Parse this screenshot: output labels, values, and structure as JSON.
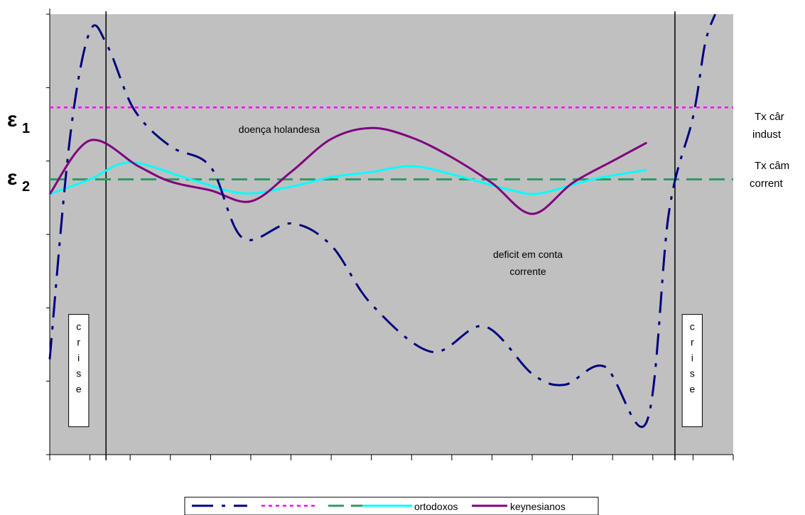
{
  "chart_data": {
    "type": "line",
    "title": "",
    "xlabel": "",
    "ylabel": "",
    "xlim": [
      0,
      17
    ],
    "ylim": [
      0,
      6
    ],
    "grid": false,
    "legend_position": "bottom",
    "axis_labels_y": [
      {
        "symbol": "ε",
        "sub": "1",
        "y": 4.73
      },
      {
        "symbol": "ε",
        "sub": "2",
        "y": 3.75
      }
    ],
    "annotations": {
      "doenca": "doença holandesa",
      "deficit_line1": "deficit em conta",
      "deficit_line2": "corrente",
      "tx1_line1": "Tx câr",
      "tx1_line2": "indust",
      "tx2_line1": "Tx câm",
      "tx2_line2": "corrent"
    },
    "crise": {
      "letters": [
        "c",
        "r",
        "i",
        "s",
        "e"
      ],
      "x_start": 0.47,
      "x_end": 0.97,
      "x2_start": 15.73,
      "x2_end": 16.23,
      "y_top": 1.91,
      "y_bottom": 0.38
    },
    "crisis_lines_x": [
      1.4,
      15.55
    ],
    "series": [
      {
        "name": "",
        "color": "#000080",
        "style": "dashdot",
        "points": [
          [
            0,
            1.3
          ],
          [
            0.5,
            4.3
          ],
          [
            1.0,
            5.77
          ],
          [
            1.45,
            5.55
          ],
          [
            2.1,
            4.7
          ],
          [
            3.0,
            4.2
          ],
          [
            4.0,
            3.92
          ],
          [
            4.8,
            2.95
          ],
          [
            6.0,
            3.15
          ],
          [
            7.0,
            2.85
          ],
          [
            8.0,
            2.05
          ],
          [
            9.5,
            1.4
          ],
          [
            10.8,
            1.75
          ],
          [
            12.0,
            1.1
          ],
          [
            12.8,
            0.95
          ],
          [
            13.8,
            1.2
          ],
          [
            14.85,
            0.45
          ],
          [
            15.4,
            3.3
          ],
          [
            16.0,
            4.6
          ],
          [
            16.3,
            5.6
          ],
          [
            16.55,
            6.0
          ]
        ]
      },
      {
        "name": "",
        "color": "#ff00ff",
        "style": "dotted",
        "points": [
          [
            0,
            4.73
          ],
          [
            17,
            4.73
          ]
        ]
      },
      {
        "name": "",
        "color": "#339966",
        "style": "dashed",
        "points": [
          [
            0,
            3.75
          ],
          [
            17,
            3.75
          ]
        ]
      },
      {
        "name": "ortodoxos",
        "color": "#00ffff",
        "style": "solid",
        "points": [
          [
            0,
            3.55
          ],
          [
            1.0,
            3.75
          ],
          [
            2.0,
            3.98
          ],
          [
            3.5,
            3.75
          ],
          [
            4.8,
            3.56
          ],
          [
            6.0,
            3.65
          ],
          [
            7.0,
            3.78
          ],
          [
            8.0,
            3.85
          ],
          [
            9.0,
            3.93
          ],
          [
            10.0,
            3.82
          ],
          [
            11.5,
            3.6
          ],
          [
            12.2,
            3.56
          ],
          [
            13.5,
            3.75
          ],
          [
            14.85,
            3.88
          ]
        ]
      },
      {
        "name": "keynesianos",
        "color": "#800080",
        "style": "solid",
        "points": [
          [
            0,
            3.55
          ],
          [
            1.0,
            4.28
          ],
          [
            2.2,
            3.93
          ],
          [
            3.0,
            3.72
          ],
          [
            4.0,
            3.6
          ],
          [
            5.0,
            3.45
          ],
          [
            6.0,
            3.85
          ],
          [
            7.0,
            4.3
          ],
          [
            8.0,
            4.45
          ],
          [
            9.0,
            4.32
          ],
          [
            10.0,
            4.05
          ],
          [
            11.0,
            3.7
          ],
          [
            12.0,
            3.28
          ],
          [
            13.0,
            3.7
          ],
          [
            14.0,
            4.0
          ],
          [
            14.85,
            4.25
          ]
        ]
      }
    ]
  }
}
